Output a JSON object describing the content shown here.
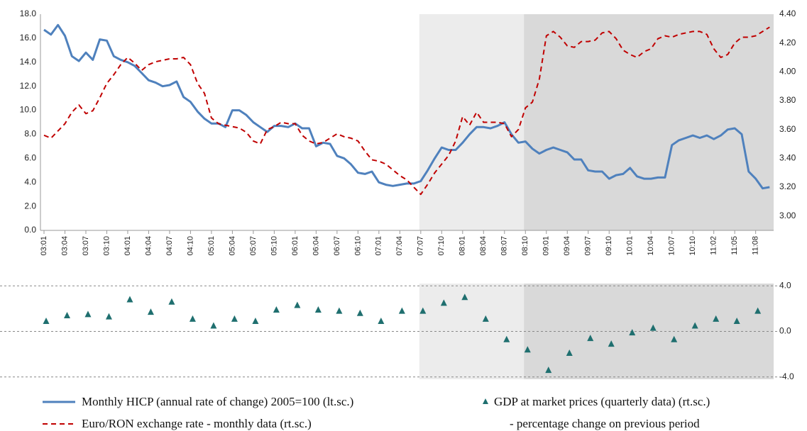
{
  "chart_data": [
    {
      "type": "line",
      "categories": [
        "03:01",
        null,
        null,
        "03:04",
        null,
        null,
        "03:07",
        null,
        null,
        "03:10",
        null,
        null,
        "04:01",
        null,
        null,
        "04:04",
        null,
        null,
        "04:07",
        null,
        null,
        "04:10",
        null,
        null,
        "05:01",
        null,
        null,
        "05:04",
        null,
        null,
        "05:07",
        null,
        null,
        "05:10",
        null,
        null,
        "06:01",
        null,
        null,
        "06:04",
        null,
        null,
        "06:07",
        null,
        null,
        "06:10",
        null,
        null,
        "07:01",
        null,
        null,
        "07:04",
        null,
        null,
        "07:07",
        null,
        null,
        "07:10",
        null,
        null,
        "08:01",
        null,
        null,
        "08:04",
        null,
        null,
        "08:07",
        null,
        null,
        "08:10",
        null,
        null,
        "09:01",
        null,
        null,
        "09:04",
        null,
        null,
        "09:07",
        null,
        null,
        "09:10",
        null,
        null,
        "10:01",
        null,
        null,
        "10:04",
        null,
        null,
        "10:07",
        null,
        null,
        "10:10",
        null,
        null,
        "11:02",
        null,
        null,
        "11:05",
        null,
        null,
        "11:08",
        null,
        null
      ],
      "ylim": [
        0,
        18
      ],
      "yticks": [
        {
          "value": 0,
          "label": "0.0"
        },
        {
          "value": 2,
          "label": "2.0"
        },
        {
          "value": 4,
          "label": "4.0"
        },
        {
          "value": 6,
          "label": "6.0"
        },
        {
          "value": 8,
          "label": "8.0"
        },
        {
          "value": 10,
          "label": "10.0"
        },
        {
          "value": 12,
          "label": "12.0"
        },
        {
          "value": 14,
          "label": "14.0"
        },
        {
          "value": 16,
          "label": "16.0"
        },
        {
          "value": 18,
          "label": "18.0"
        }
      ],
      "y2lim": [
        2.9,
        4.4
      ],
      "y2ticks": [
        {
          "value": 3,
          "label": "3.00"
        },
        {
          "value": 3.2,
          "label": "3.20"
        },
        {
          "value": 3.4,
          "label": "3.40"
        },
        {
          "value": 3.6,
          "label": "3.60"
        },
        {
          "value": 3.8,
          "label": "3.80"
        },
        {
          "value": 4,
          "label": "4.00"
        },
        {
          "value": 4.2,
          "label": "4.20"
        },
        {
          "value": 4.4,
          "label": "4.40"
        }
      ],
      "grid": false,
      "shading": [
        {
          "start": "07:07",
          "color": "#ececec"
        },
        {
          "start": "08:10",
          "color": "#d9d9d9"
        }
      ],
      "series": [
        {
          "name": "Monthly HICP (annual rate of change) 2005=100 (lt.sc.)",
          "color": "#4f81bd",
          "style": "solid",
          "values": [
            16.7,
            16.3,
            17.1,
            16.2,
            14.5,
            14.1,
            14.8,
            14.2,
            15.9,
            15.8,
            14.5,
            14.2,
            14.0,
            13.7,
            13.1,
            12.5,
            12.3,
            12.0,
            12.1,
            12.4,
            11.1,
            10.7,
            9.9,
            9.3,
            8.9,
            8.9,
            8.6,
            10.0,
            10.0,
            9.6,
            9.0,
            8.6,
            8.2,
            8.7,
            8.7,
            8.6,
            8.9,
            8.5,
            8.5,
            7.0,
            7.3,
            7.2,
            6.2,
            6.0,
            5.5,
            4.8,
            4.7,
            4.9,
            4.0,
            3.8,
            3.7,
            3.8,
            3.9,
            3.9,
            4.1,
            5.0,
            6.0,
            6.9,
            6.7,
            6.7,
            7.3,
            8.0,
            8.6,
            8.6,
            8.5,
            8.7,
            9.0,
            8.0,
            7.3,
            7.4,
            6.8,
            6.4,
            6.7,
            6.9,
            6.7,
            6.5,
            5.9,
            5.9,
            5.0,
            4.9,
            4.9,
            4.3,
            4.6,
            4.7,
            5.2,
            4.5,
            4.3,
            4.3,
            4.4,
            4.4,
            7.1,
            7.5,
            7.7,
            7.9,
            7.7,
            7.9,
            7.6,
            7.9,
            8.4,
            8.5,
            8.0,
            4.9,
            4.3,
            3.5,
            3.6
          ]
        },
        {
          "name": "Euro/RON exchange rate - monthly data (rt.sc.)",
          "color": "#c00000",
          "style": "dashed",
          "axis": "y2",
          "values": [
            3.56,
            3.54,
            3.59,
            3.64,
            3.72,
            3.77,
            3.71,
            3.73,
            3.82,
            3.92,
            3.98,
            4.05,
            4.1,
            4.06,
            4.01,
            4.05,
            4.07,
            4.08,
            4.09,
            4.09,
            4.1,
            4.05,
            3.92,
            3.85,
            3.68,
            3.64,
            3.63,
            3.62,
            3.61,
            3.58,
            3.52,
            3.5,
            3.6,
            3.62,
            3.65,
            3.64,
            3.64,
            3.56,
            3.52,
            3.5,
            3.51,
            3.54,
            3.57,
            3.55,
            3.54,
            3.52,
            3.45,
            3.39,
            3.38,
            3.36,
            3.32,
            3.28,
            3.25,
            3.2,
            3.15,
            3.22,
            3.3,
            3.36,
            3.42,
            3.52,
            3.69,
            3.63,
            3.72,
            3.65,
            3.65,
            3.65,
            3.64,
            3.55,
            3.6,
            3.75,
            3.79,
            3.95,
            4.25,
            4.28,
            4.24,
            4.18,
            4.17,
            4.21,
            4.21,
            4.22,
            4.27,
            4.28,
            4.23,
            4.15,
            4.12,
            4.1,
            4.14,
            4.16,
            4.23,
            4.25,
            4.24,
            4.26,
            4.27,
            4.28,
            4.28,
            4.26,
            4.16,
            4.1,
            4.12,
            4.2,
            4.24,
            4.24,
            4.25,
            4.28,
            4.31
          ]
        }
      ]
    },
    {
      "type": "scatter",
      "ylim": [
        -4.2,
        4.2
      ],
      "yticks": [
        {
          "value": 4,
          "label": "4.0"
        },
        {
          "value": 0,
          "label": "0.0"
        },
        {
          "value": -4,
          "label": "-4.0"
        }
      ],
      "grid": true,
      "shading": [
        {
          "start": "07:07",
          "color": "#ececec"
        },
        {
          "start": "08:10",
          "color": "#d9d9d9"
        }
      ],
      "series": [
        {
          "name": "GDP at market prices (quarterly data) (rt.sc.)",
          "color": "#1f6f6f",
          "marker": "triangle",
          "values": [
            0.9,
            1.4,
            1.5,
            1.3,
            2.8,
            1.7,
            2.6,
            1.1,
            0.5,
            1.1,
            0.9,
            1.9,
            2.3,
            1.9,
            1.8,
            1.6,
            0.9,
            1.8,
            1.8,
            2.5,
            3.0,
            1.1,
            -0.7,
            -1.6,
            -3.4,
            -1.9,
            -0.6,
            -1.1,
            -0.1,
            0.3,
            -0.7,
            0.5,
            1.1,
            0.9,
            1.8
          ]
        }
      ],
      "legend_note": "- percentage change on previous period"
    }
  ]
}
